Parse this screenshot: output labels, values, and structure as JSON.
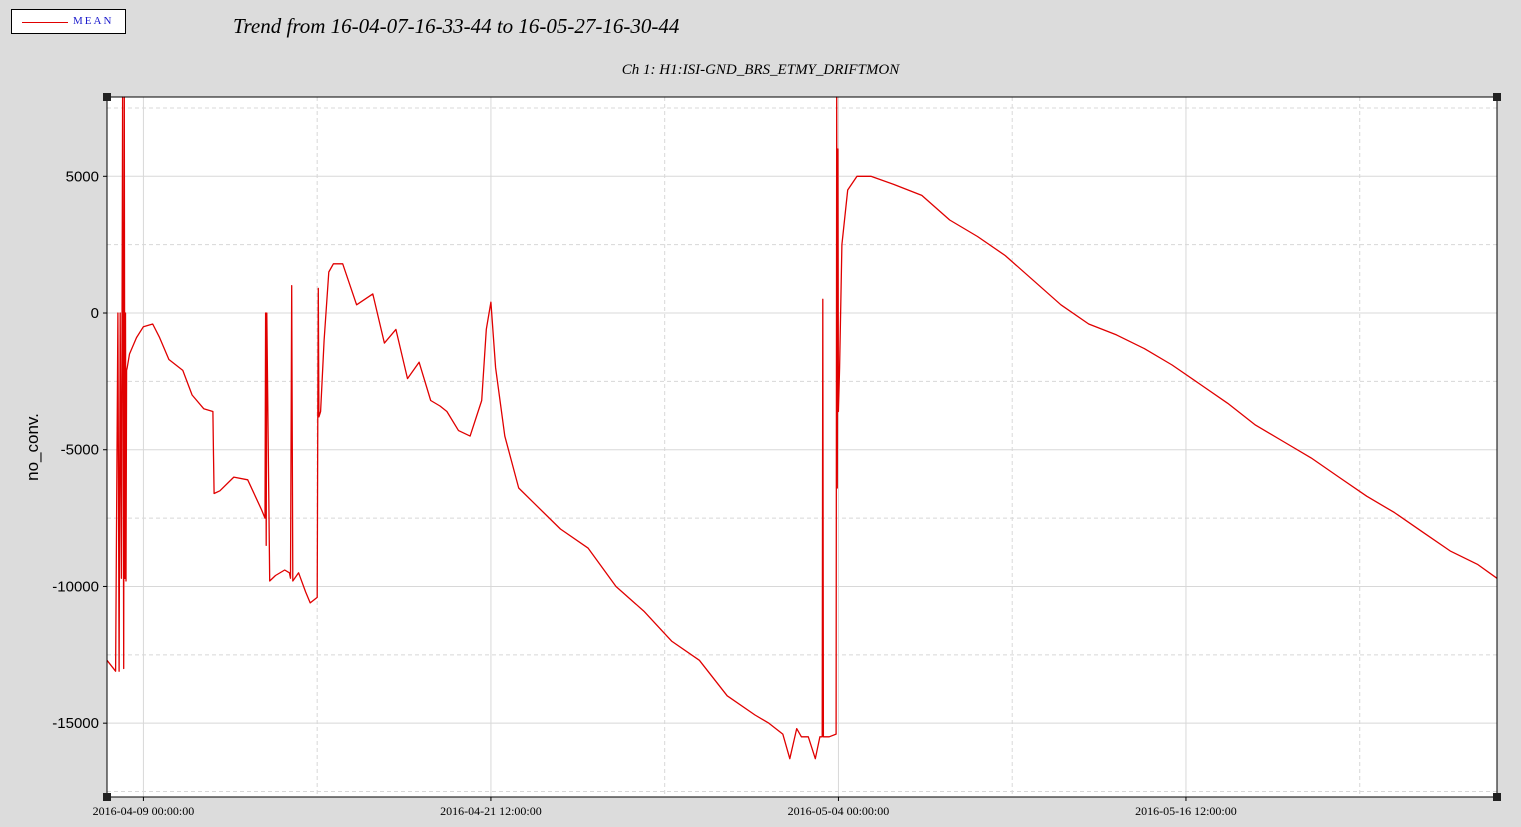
{
  "legend": {
    "label": "MEAN",
    "color": "#e00000"
  },
  "title": "Trend from 16-04-07-16-33-44 to 16-05-27-16-30-44",
  "chart_data": {
    "type": "line",
    "title": "Ch 1: H1:ISI-GND_BRS_ETMY_DRIFTMON",
    "xlabel": "",
    "ylabel": "no_conv.",
    "xlim": [
      "2016-04-07 16:33:44",
      "2016-05-27 16:30:44"
    ],
    "ylim": [
      -17700,
      7900
    ],
    "yticks": [
      5000,
      0,
      -5000,
      -10000,
      -15000
    ],
    "yticklabels": [
      "5000",
      "0",
      "-5000",
      "-10000",
      "-15000"
    ],
    "xticks": [
      "2016-04-09 00:00:00",
      "2016-04-21 12:00:00",
      "2016-05-04 00:00:00",
      "2016-05-16 12:00:00"
    ],
    "grid": true,
    "series": [
      {
        "name": "MEAN",
        "color": "#e00000",
        "x": [
          "2016-04-07 16:33",
          "2016-04-08 00:00",
          "2016-04-08 02:00",
          "2016-04-08 03:00",
          "2016-04-08 04:00",
          "2016-04-08 05:00",
          "2016-04-08 06:00",
          "2016-04-08 07:00",
          "2016-04-08 07:30",
          "2016-04-08 08:00",
          "2016-04-08 08:30",
          "2016-04-08 09:00",
          "2016-04-08 09:30",
          "2016-04-08 10:00",
          "2016-04-08 12:00",
          "2016-04-08 18:00",
          "2016-04-09 00:00",
          "2016-04-09 08:00",
          "2016-04-09 14:00",
          "2016-04-09 22:00",
          "2016-04-10 10:00",
          "2016-04-10 18:00",
          "2016-04-11 04:00",
          "2016-04-11 12:00",
          "2016-04-11 12:30",
          "2016-04-11 13:00",
          "2016-04-11 18:00",
          "2016-04-12 06:00",
          "2016-04-12 18:00",
          "2016-04-13 06:00",
          "2016-04-13 09:00",
          "2016-04-13 09:30",
          "2016-04-13 10:00",
          "2016-04-13 10:30",
          "2016-04-13 13:00",
          "2016-04-13 18:00",
          "2016-04-14 02:00",
          "2016-04-14 06:00",
          "2016-04-14 07:00",
          "2016-04-14 08:00",
          "2016-04-14 09:00",
          "2016-04-14 14:00",
          "2016-04-14 20:00",
          "2016-04-15 00:00",
          "2016-04-15 06:00",
          "2016-04-15 06:30",
          "2016-04-15 07:00",
          "2016-04-15 07:30",
          "2016-04-15 09:00",
          "2016-04-15 12:00",
          "2016-04-15 16:00",
          "2016-04-15 20:00",
          "2016-04-16 04:00",
          "2016-04-16 16:00",
          "2016-04-17 06:00",
          "2016-04-17 16:00",
          "2016-04-18 02:00",
          "2016-04-18 12:00",
          "2016-04-18 22:00",
          "2016-04-19 08:00",
          "2016-04-19 16:00",
          "2016-04-19 22:00",
          "2016-04-20 08:00",
          "2016-04-20 18:00",
          "2016-04-21 04:00",
          "2016-04-21 08:00",
          "2016-04-21 12:00",
          "2016-04-21 16:00",
          "2016-04-22 00:00",
          "2016-04-22 12:00",
          "2016-04-23 00:00",
          "2016-04-24 00:00",
          "2016-04-25 00:00",
          "2016-04-26 00:00",
          "2016-04-27 00:00",
          "2016-04-28 00:00",
          "2016-04-29 00:00",
          "2016-04-30 00:00",
          "2016-05-01 00:00",
          "2016-05-01 12:00",
          "2016-05-02 00:00",
          "2016-05-02 06:00",
          "2016-05-02 12:00",
          "2016-05-02 16:00",
          "2016-05-02 22:00",
          "2016-05-03 04:00",
          "2016-05-03 08:00",
          "2016-05-03 10:00",
          "2016-05-03 10:30",
          "2016-05-03 11:00",
          "2016-05-03 16:00",
          "2016-05-03 22:00",
          "2016-05-03 22:30",
          "2016-05-03 23:00",
          "2016-05-03 23:30",
          "2016-05-04 00:00",
          "2016-05-04 01:00",
          "2016-05-04 03:00",
          "2016-05-04 08:00",
          "2016-05-04 16:00",
          "2016-05-05 04:00",
          "2016-05-06 00:00",
          "2016-05-07 00:00",
          "2016-05-08 00:00",
          "2016-05-09 00:00",
          "2016-05-10 00:00",
          "2016-05-11 00:00",
          "2016-05-12 00:00",
          "2016-05-13 00:00",
          "2016-05-14 00:00",
          "2016-05-15 00:00",
          "2016-05-16 00:00",
          "2016-05-17 00:00",
          "2016-05-18 00:00",
          "2016-05-19 00:00",
          "2016-05-20 00:00",
          "2016-05-21 00:00",
          "2016-05-22 00:00",
          "2016-05-23 00:00",
          "2016-05-24 00:00",
          "2016-05-25 00:00",
          "2016-05-26 00:00",
          "2016-05-27 00:00",
          "2016-05-27 16:30"
        ],
        "y": [
          -12700,
          -13100,
          0,
          -13100,
          0,
          -9700,
          7900,
          -13000,
          7900,
          -9700,
          0,
          -9800,
          -2100,
          -2000,
          -1500,
          -900,
          -500,
          -400,
          -900,
          -1700,
          -2100,
          -3000,
          -3500,
          -3600,
          -5200,
          -6600,
          -6500,
          -6000,
          -6100,
          -7200,
          -7500,
          0,
          -8500,
          0,
          -9800,
          -9600,
          -9400,
          -9500,
          -9700,
          1000,
          -9800,
          -9500,
          -10200,
          -10600,
          -10400,
          -3700,
          900,
          -3800,
          -3600,
          -1000,
          1500,
          1800,
          1800,
          300,
          700,
          -1100,
          -600,
          -2400,
          -1800,
          -3200,
          -3400,
          -3600,
          -4300,
          -4500,
          -3200,
          -600,
          400,
          -2000,
          -4500,
          -6400,
          -6900,
          -7900,
          -8600,
          -10000,
          -10900,
          -12000,
          -12700,
          -14000,
          -14700,
          -15000,
          -15400,
          -16300,
          -15200,
          -15500,
          -15500,
          -16300,
          -15500,
          -15500,
          500,
          -15500,
          -15500,
          -15400,
          7900,
          -6400,
          6000,
          -3600,
          -2000,
          2500,
          4500,
          5000,
          5000,
          4700,
          4300,
          3400,
          2800,
          2100,
          1200,
          300,
          -400,
          -800,
          -1300,
          -1900,
          -2600,
          -3300,
          -4100,
          -4700,
          -5300,
          -6000,
          -6700,
          -7300,
          -8000,
          -8700,
          -9200,
          -9700
        ]
      }
    ]
  }
}
